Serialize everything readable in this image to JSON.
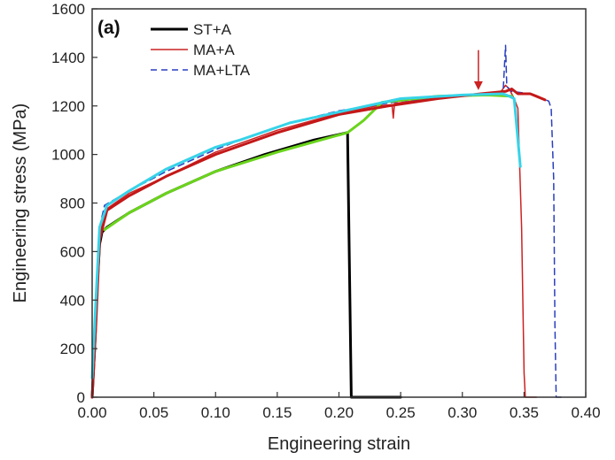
{
  "chart_data": {
    "type": "line",
    "panel_label": "(a)",
    "xlabel": "Engineering strain",
    "ylabel": "Engineering stress (MPa)",
    "xlim": [
      0.0,
      0.4
    ],
    "ylim": [
      0,
      1600
    ],
    "x_ticks": [
      "0.00",
      "0.05",
      "0.10",
      "0.15",
      "0.20",
      "0.25",
      "0.30",
      "0.35",
      "0.40"
    ],
    "y_ticks": [
      "0",
      "200",
      "400",
      "600",
      "800",
      "1000",
      "1200",
      "1400",
      "1600"
    ],
    "legend_position": "top-left",
    "legend": [
      {
        "label": "ST+A",
        "color": "#000000",
        "dash": "solid",
        "width": 3
      },
      {
        "label": "MA+A",
        "color": "#cc2222",
        "dash": "solid",
        "width": 1.5
      },
      {
        "label": "MA+LTA",
        "color": "#2a3fbf",
        "dash": "dashed",
        "width": 1.5
      }
    ],
    "series": [
      {
        "color": "#000000",
        "width": 3,
        "dash": "solid",
        "points": [
          [
            0.0,
            0
          ],
          [
            0.002,
            200
          ],
          [
            0.004,
            450
          ],
          [
            0.006,
            630
          ],
          [
            0.008,
            680
          ],
          [
            0.012,
            700
          ],
          [
            0.03,
            760
          ],
          [
            0.06,
            840
          ],
          [
            0.1,
            930
          ],
          [
            0.14,
            1000
          ],
          [
            0.18,
            1060
          ],
          [
            0.207,
            1090
          ],
          [
            0.21,
            0
          ],
          [
            0.25,
            0
          ]
        ]
      },
      {
        "color": "#cc2222",
        "width": 1.5,
        "dash": "solid",
        "points": [
          [
            0.0,
            0
          ],
          [
            0.003,
            300
          ],
          [
            0.006,
            650
          ],
          [
            0.01,
            770
          ],
          [
            0.03,
            840
          ],
          [
            0.06,
            910
          ],
          [
            0.1,
            1010
          ],
          [
            0.15,
            1100
          ],
          [
            0.2,
            1170
          ],
          [
            0.23,
            1200
          ],
          [
            0.243,
            1205
          ],
          [
            0.244,
            1150
          ],
          [
            0.245,
            1210
          ],
          [
            0.28,
            1235
          ],
          [
            0.315,
            1245
          ],
          [
            0.33,
            1250
          ],
          [
            0.335,
            1285
          ],
          [
            0.338,
            1270
          ],
          [
            0.342,
            1230
          ],
          [
            0.345,
            1190
          ],
          [
            0.348,
            700
          ],
          [
            0.35,
            100
          ],
          [
            0.351,
            0
          ],
          [
            0.36,
            0
          ]
        ]
      },
      {
        "color": "#2a3fbf",
        "width": 1.5,
        "dash": "dashed",
        "points": [
          [
            0.0,
            0
          ],
          [
            0.003,
            350
          ],
          [
            0.006,
            700
          ],
          [
            0.01,
            790
          ],
          [
            0.03,
            850
          ],
          [
            0.06,
            930
          ],
          [
            0.1,
            1020
          ],
          [
            0.12,
            1060
          ],
          [
            0.16,
            1130
          ],
          [
            0.2,
            1180
          ],
          [
            0.25,
            1220
          ],
          [
            0.3,
            1245
          ],
          [
            0.333,
            1255
          ],
          [
            0.335,
            1450
          ],
          [
            0.336,
            1280
          ],
          [
            0.34,
            1260
          ],
          [
            0.355,
            1250
          ],
          [
            0.37,
            1220
          ],
          [
            0.372,
            1190
          ],
          [
            0.374,
            900
          ],
          [
            0.375,
            300
          ],
          [
            0.376,
            0
          ],
          [
            0.38,
            0
          ]
        ]
      },
      {
        "color": "#6ad41c",
        "width": 3,
        "dash": "solid",
        "points": [
          [
            0.01,
            690
          ],
          [
            0.03,
            760
          ],
          [
            0.06,
            840
          ],
          [
            0.1,
            930
          ],
          [
            0.15,
            1010
          ],
          [
            0.207,
            1090
          ],
          [
            0.22,
            1140
          ],
          [
            0.235,
            1215
          ],
          [
            0.28,
            1240
          ],
          [
            0.32,
            1245
          ],
          [
            0.34,
            1240
          ]
        ]
      },
      {
        "color": "#c41818",
        "width": 3,
        "dash": "solid",
        "points": [
          [
            0.0,
            0
          ],
          [
            0.003,
            300
          ],
          [
            0.006,
            650
          ],
          [
            0.012,
            770
          ],
          [
            0.03,
            830
          ],
          [
            0.06,
            910
          ],
          [
            0.1,
            1000
          ],
          [
            0.15,
            1090
          ],
          [
            0.2,
            1165
          ],
          [
            0.24,
            1200
          ],
          [
            0.28,
            1230
          ],
          [
            0.315,
            1250
          ],
          [
            0.335,
            1260
          ],
          [
            0.34,
            1270
          ],
          [
            0.345,
            1250
          ],
          [
            0.355,
            1250
          ],
          [
            0.36,
            1240
          ],
          [
            0.367,
            1225
          ]
        ]
      },
      {
        "color": "#37d3e8",
        "width": 3,
        "dash": "solid",
        "points": [
          [
            0.0,
            80
          ],
          [
            0.003,
            400
          ],
          [
            0.006,
            700
          ],
          [
            0.012,
            790
          ],
          [
            0.03,
            850
          ],
          [
            0.06,
            940
          ],
          [
            0.1,
            1030
          ],
          [
            0.12,
            1060
          ],
          [
            0.16,
            1130
          ],
          [
            0.2,
            1175
          ],
          [
            0.25,
            1230
          ],
          [
            0.3,
            1245
          ],
          [
            0.333,
            1250
          ],
          [
            0.338,
            1240
          ],
          [
            0.342,
            1230
          ],
          [
            0.347,
            950
          ]
        ]
      }
    ],
    "annotations": [
      {
        "type": "arrow",
        "color": "#cc2222",
        "x": 0.313,
        "y_from": 1430,
        "y_to": 1265
      }
    ]
  }
}
